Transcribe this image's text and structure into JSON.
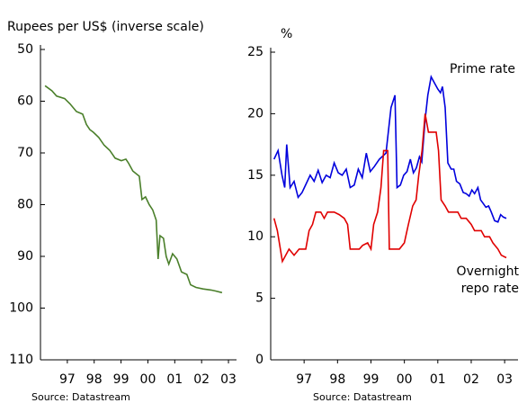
{
  "chart_data": [
    {
      "type": "line",
      "title": "Rupees per US$ (inverse scale)",
      "source": "Source: Datastream",
      "y_inverted": true,
      "ylim": [
        50,
        110
      ],
      "yticks": [
        50,
        60,
        70,
        80,
        90,
        100,
        110
      ],
      "xlim": [
        96.5,
        103.8
      ],
      "xticks": [
        {
          "value": 97.5,
          "label": "97"
        },
        {
          "value": 98.5,
          "label": "98"
        },
        {
          "value": 99.5,
          "label": "99"
        },
        {
          "value": 100.5,
          "label": "00"
        },
        {
          "value": 101.5,
          "label": "01"
        },
        {
          "value": 102.5,
          "label": "02"
        },
        {
          "value": 103.5,
          "label": "03"
        }
      ],
      "annotations": [],
      "series": [
        {
          "color": "#4a7f2a",
          "x": [
            96.67,
            96.93,
            97.1,
            97.4,
            97.6,
            97.84,
            98.07,
            98.21,
            98.34,
            98.47,
            98.67,
            98.87,
            99.08,
            99.28,
            99.51,
            99.68,
            99.78,
            99.94,
            100.18,
            100.28,
            100.41,
            100.55,
            100.68,
            100.81,
            100.88,
            100.95,
            101.08,
            101.18,
            101.28,
            101.42,
            101.58,
            101.75,
            101.95,
            102.09,
            102.29,
            102.55,
            102.85,
            103.02,
            103.26
          ],
          "values": [
            57,
            58,
            59,
            59.5,
            60.5,
            62,
            62.5,
            64.5,
            65.5,
            66,
            67,
            68.5,
            69.5,
            71,
            71.5,
            71.2,
            72,
            73.5,
            74.5,
            79,
            78.5,
            80,
            81,
            83,
            90.5,
            86,
            86.5,
            90,
            91.5,
            89.5,
            90.5,
            93,
            93.5,
            95.5,
            96,
            96.3,
            96.5,
            96.7,
            97
          ]
        }
      ]
    },
    {
      "type": "line",
      "title": "%",
      "source": "Source: Datastream",
      "ylim": [
        0,
        25
      ],
      "yticks": [
        0,
        5,
        10,
        15,
        20,
        25
      ],
      "xlim": [
        96.5,
        103.9
      ],
      "xticks": [
        {
          "value": 97.5,
          "label": "97"
        },
        {
          "value": 98.5,
          "label": "98"
        },
        {
          "value": 99.5,
          "label": "99"
        },
        {
          "value": 100.5,
          "label": "00"
        },
        {
          "value": 101.5,
          "label": "01"
        },
        {
          "value": 102.5,
          "label": "02"
        },
        {
          "value": 103.5,
          "label": "03"
        }
      ],
      "annotations": [
        "Prime rate",
        "Overnight",
        "repo rate"
      ],
      "series": [
        {
          "color": "#0000dd",
          "x": [
            96.6,
            96.72,
            96.84,
            96.92,
            96.98,
            97.08,
            97.2,
            97.32,
            97.44,
            97.56,
            97.68,
            97.8,
            97.92,
            98.04,
            98.16,
            98.28,
            98.4,
            98.52,
            98.64,
            98.76,
            98.88,
            99.0,
            99.12,
            99.24,
            99.36,
            99.48,
            99.6,
            99.75,
            99.95,
            100.1,
            100.22,
            100.28,
            100.38,
            100.48,
            100.58,
            100.68,
            100.77,
            100.86,
            100.95,
            101.02,
            101.12,
            101.2,
            101.3,
            101.4,
            101.5,
            101.58,
            101.64,
            101.72,
            101.8,
            101.9,
            101.98,
            102.06,
            102.16,
            102.26,
            102.35,
            102.44,
            102.52,
            102.6,
            102.7,
            102.78,
            102.86,
            102.94,
            103.02,
            103.1,
            103.2,
            103.3,
            103.38,
            103.46,
            103.55
          ],
          "values": [
            16.3,
            17,
            15,
            14,
            17.5,
            14,
            14.5,
            13.2,
            13.6,
            14.3,
            15,
            14.5,
            15.4,
            14.4,
            15,
            14.8,
            16,
            15.2,
            15,
            15.5,
            14,
            14.2,
            15.5,
            14.8,
            16.8,
            15.3,
            15.7,
            16.3,
            16.8,
            20.5,
            21.5,
            14,
            14.2,
            15,
            15.3,
            16.3,
            15.2,
            15.6,
            16.5,
            16.1,
            19.5,
            21.5,
            23,
            22.5,
            22,
            21.7,
            22.2,
            20.5,
            16,
            15.5,
            15.5,
            14.5,
            14.3,
            13.6,
            13.5,
            13.3,
            13.8,
            13.5,
            14,
            13,
            12.7,
            12.4,
            12.5,
            12,
            11.3,
            11.2,
            11.8,
            11.6,
            11.5
          ]
        },
        {
          "color": "#e00000",
          "x": [
            96.6,
            96.7,
            96.85,
            96.95,
            97.05,
            97.2,
            97.35,
            97.55,
            97.65,
            97.75,
            97.85,
            98.0,
            98.1,
            98.2,
            98.4,
            98.55,
            98.7,
            98.8,
            98.88,
            99.0,
            99.15,
            99.25,
            99.4,
            99.5,
            99.58,
            99.7,
            99.8,
            99.88,
            100.0,
            100.05,
            100.2,
            100.35,
            100.5,
            100.62,
            100.75,
            100.85,
            100.93,
            101.03,
            101.12,
            101.22,
            101.35,
            101.45,
            101.52,
            101.6,
            101.72,
            101.82,
            102.0,
            102.1,
            102.2,
            102.35,
            102.5,
            102.6,
            102.8,
            102.9,
            103.05,
            103.15,
            103.3,
            103.4,
            103.55
          ],
          "values": [
            11.5,
            10.5,
            8,
            8.5,
            9,
            8.5,
            9,
            9,
            10.5,
            11,
            12,
            12,
            11.5,
            12,
            12,
            11.8,
            11.5,
            11,
            9,
            9,
            9,
            9.3,
            9.5,
            9,
            11,
            12,
            14,
            17,
            17,
            9,
            9,
            9,
            9.5,
            11,
            12.5,
            13,
            15,
            17,
            20,
            18.5,
            18.5,
            18.5,
            17,
            13,
            12.5,
            12,
            12,
            12,
            11.5,
            11.5,
            11,
            10.5,
            10.5,
            10,
            10,
            9.5,
            9,
            8.5,
            8.3
          ]
        }
      ]
    }
  ]
}
